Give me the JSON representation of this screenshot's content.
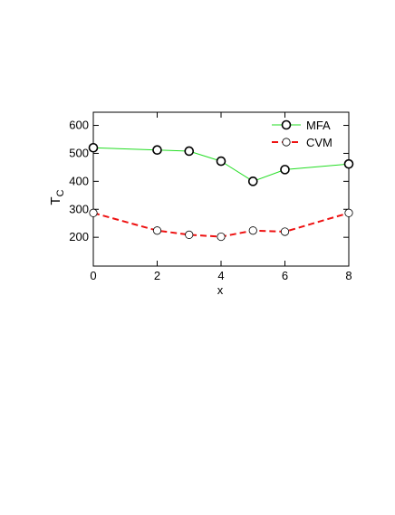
{
  "chart_data": {
    "type": "line",
    "xlabel": "x",
    "ylabel": [
      "T",
      "C"
    ],
    "x": [
      0,
      2,
      3,
      4,
      5,
      6,
      8
    ],
    "series": [
      {
        "name": "MFA",
        "color": "#22dd22",
        "dash": "solid",
        "values": [
          520,
          512,
          508,
          472,
          400,
          442,
          462
        ]
      },
      {
        "name": "CVM",
        "color": "#ee1111",
        "dash": "dashed",
        "values": [
          287,
          224,
          209,
          202,
          224,
          220,
          287
        ]
      }
    ],
    "xlim": [
      0,
      8
    ],
    "xticks": [
      0,
      2,
      4,
      6,
      8
    ],
    "ylim": [
      97,
      647
    ],
    "yticks": [
      200,
      300,
      400,
      500,
      600
    ],
    "legend": "top-right"
  }
}
